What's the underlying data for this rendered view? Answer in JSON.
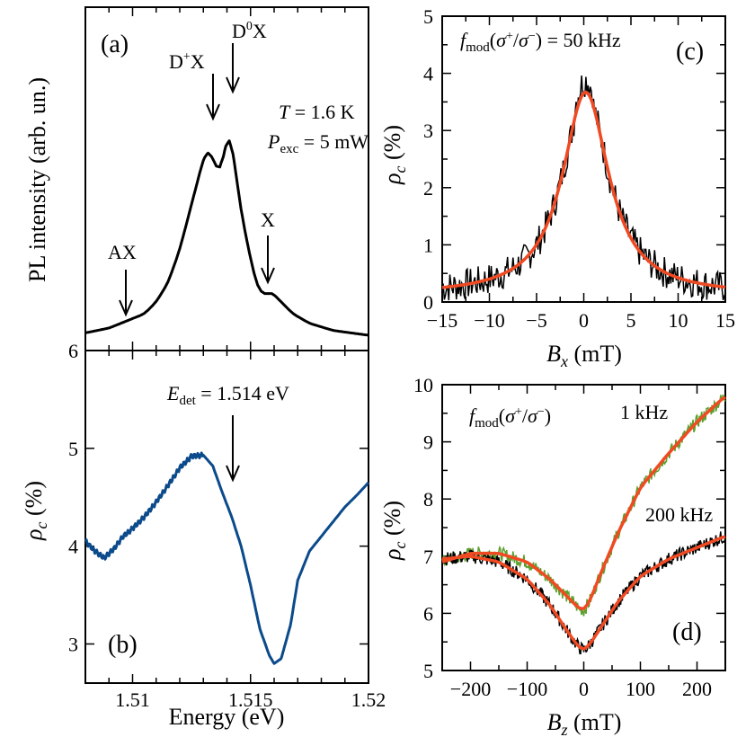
{
  "colors": {
    "pl_line": "#000000",
    "rho_b_line": "#0b4a8b",
    "fit": "#f04a23",
    "green_1khz": "#5aa02c",
    "black_200khz": "#000000"
  },
  "chart_data": [
    {
      "id": "a",
      "type": "line",
      "panel_label": "(a)",
      "ylabel": "PL intensity (arb. un.)",
      "xlim": [
        1.508,
        1.52
      ],
      "temperature": "T = 1.6 K",
      "power": "Pexc = 5 mW",
      "peaks": [
        {
          "label": "AX",
          "energy": 1.5097
        },
        {
          "label": "D+X",
          "energy": 1.5134
        },
        {
          "label": "D0X",
          "energy": 1.5141
        },
        {
          "label": "X",
          "energy": 1.5158
        }
      ],
      "series": [
        {
          "name": "PL",
          "x": [
            1.508,
            1.509,
            1.5095,
            1.51,
            1.5105,
            1.511,
            1.5115,
            1.512,
            1.5125,
            1.513,
            1.5132,
            1.5135,
            1.5137,
            1.5139,
            1.5141,
            1.5143,
            1.5146,
            1.515,
            1.5153,
            1.5156,
            1.5159,
            1.5163,
            1.5168,
            1.5175,
            1.5185,
            1.52
          ],
          "y": [
            0.01,
            0.03,
            0.05,
            0.07,
            0.09,
            0.14,
            0.22,
            0.36,
            0.55,
            0.74,
            0.78,
            0.72,
            0.68,
            0.78,
            0.85,
            0.74,
            0.52,
            0.32,
            0.2,
            0.17,
            0.18,
            0.14,
            0.09,
            0.05,
            0.02,
            0.0
          ]
        }
      ]
    },
    {
      "id": "b",
      "type": "line",
      "panel_label": "(b)",
      "ylabel": "ρc (%)",
      "xlabel": "Energy (eV)",
      "xlim": [
        1.508,
        1.52
      ],
      "ylim": [
        2.6,
        6.0
      ],
      "yticks": [
        3,
        4,
        5,
        6
      ],
      "xticks": [
        1.51,
        1.515,
        1.52
      ],
      "xticklabels": [
        "1.51",
        "1.515",
        "1.52"
      ],
      "annotation": "Edet = 1.514 eV",
      "arrow_energy": 1.5141,
      "series": [
        {
          "name": "rho_c",
          "x": [
            1.508,
            1.5084,
            1.5088,
            1.5092,
            1.5096,
            1.51,
            1.5105,
            1.511,
            1.5115,
            1.512,
            1.5125,
            1.513,
            1.5134,
            1.5138,
            1.5142,
            1.5146,
            1.515,
            1.5154,
            1.5158,
            1.516,
            1.5163,
            1.5167,
            1.517,
            1.5175,
            1.518,
            1.5185,
            1.519,
            1.5195,
            1.52
          ],
          "y": [
            4.05,
            3.95,
            3.88,
            3.97,
            4.1,
            4.18,
            4.3,
            4.45,
            4.62,
            4.8,
            4.92,
            4.93,
            4.82,
            4.55,
            4.3,
            4.0,
            3.6,
            3.15,
            2.88,
            2.8,
            2.85,
            3.2,
            3.65,
            3.95,
            4.1,
            4.25,
            4.4,
            4.52,
            4.65
          ]
        }
      ]
    },
    {
      "id": "c",
      "type": "line",
      "panel_label": "(c)",
      "ylabel": "ρc (%)",
      "xlabel": "Bx (mT)",
      "xlim": [
        -15,
        15
      ],
      "ylim": [
        0,
        5
      ],
      "xticks": [
        -15,
        -10,
        -5,
        0,
        5,
        10,
        15
      ],
      "yticks": [
        0,
        1,
        2,
        3,
        4,
        5
      ],
      "annotation": "fmod(σ+/σ−) = 50 kHz",
      "fit": {
        "type": "lorentzian",
        "amplitude": 3.55,
        "center": 0.2,
        "hwhm": 3.0,
        "offset": 0.12
      },
      "noise_amplitude": 0.28
    },
    {
      "id": "d",
      "type": "line",
      "panel_label": "(d)",
      "ylabel": "ρc (%)",
      "xlabel": "Bz (mT)",
      "xlim": [
        -250,
        250
      ],
      "ylim": [
        5,
        10
      ],
      "xticks": [
        -200,
        -100,
        0,
        100,
        200
      ],
      "yticks": [
        5,
        6,
        7,
        8,
        9,
        10
      ],
      "annotation": "fmod(σ+/σ−)",
      "series": [
        {
          "name": "1 kHz",
          "x": [
            -250,
            -200,
            -150,
            -100,
            -60,
            -30,
            -10,
            0,
            10,
            30,
            60,
            100,
            150,
            200,
            250
          ],
          "y": [
            6.9,
            7.05,
            7.05,
            6.9,
            6.6,
            6.3,
            6.1,
            6.05,
            6.2,
            6.7,
            7.4,
            8.2,
            8.8,
            9.35,
            9.8
          ]
        },
        {
          "name": "200 kHz",
          "x": [
            -250,
            -200,
            -150,
            -100,
            -60,
            -30,
            -10,
            0,
            10,
            30,
            60,
            100,
            150,
            200,
            250
          ],
          "y": [
            6.95,
            7.0,
            6.9,
            6.6,
            6.15,
            5.7,
            5.42,
            5.35,
            5.45,
            5.75,
            6.2,
            6.65,
            6.95,
            7.15,
            7.35
          ]
        }
      ],
      "noise_amplitude": 0.12
    }
  ]
}
